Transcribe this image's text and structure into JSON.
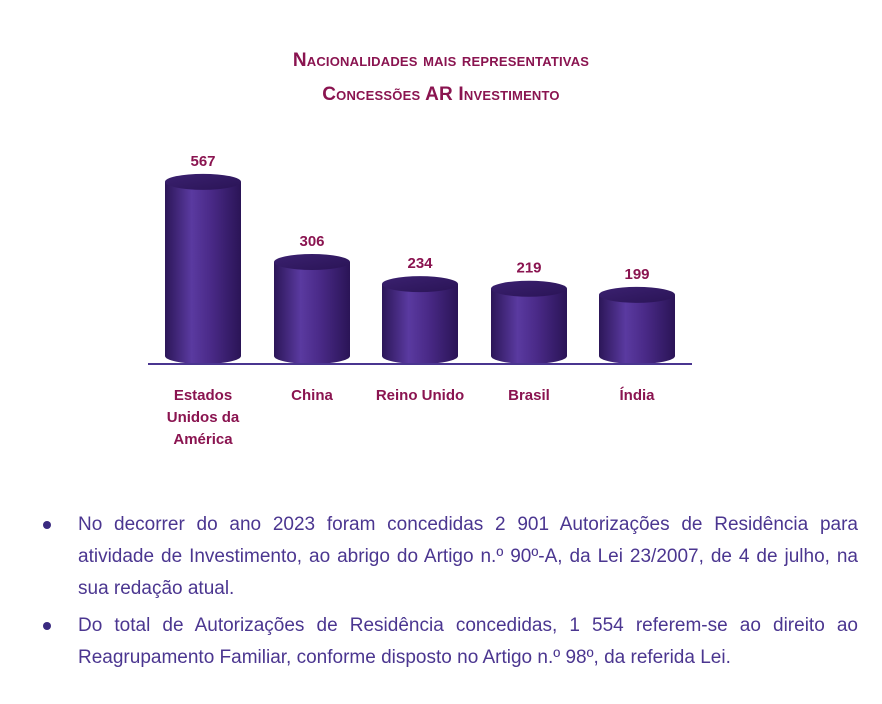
{
  "chart_data": {
    "type": "bar",
    "title": "Nacionalidades mais representativas",
    "subtitle": "Concessões AR Investimento",
    "categories": [
      "Estados Unidos da América",
      "China",
      "Reino Unido",
      "Brasil",
      "Índia"
    ],
    "category_lines": [
      [
        "Estados",
        "Unidos da",
        "América"
      ],
      [
        "China"
      ],
      [
        "Reino Unido"
      ],
      [
        "Brasil"
      ],
      [
        "Índia"
      ]
    ],
    "values": [
      567,
      306,
      234,
      219,
      199
    ],
    "ylim": [
      0,
      600
    ],
    "xlabel": "",
    "ylabel": "",
    "grid": false,
    "colors": {
      "bar": "#4a2a88",
      "bar_light": "#6a48b0",
      "bar_dark": "#2c1658",
      "label": "#8a1450",
      "axis": "#4a3590"
    }
  },
  "bullets": [
    "No decorrer do ano 2023 foram concedidas 2 901 Autorizações de Residência para atividade de Investimento, ao abrigo do Artigo n.º 90º-A, da Lei 23/2007, de 4 de julho, na sua redação atual.",
    "Do total de Autorizações de Residência concedidas, 1 554 referem-se ao direito ao Reagrupamento Familiar, conforme disposto no Artigo n.º 98º, da referida Lei."
  ]
}
